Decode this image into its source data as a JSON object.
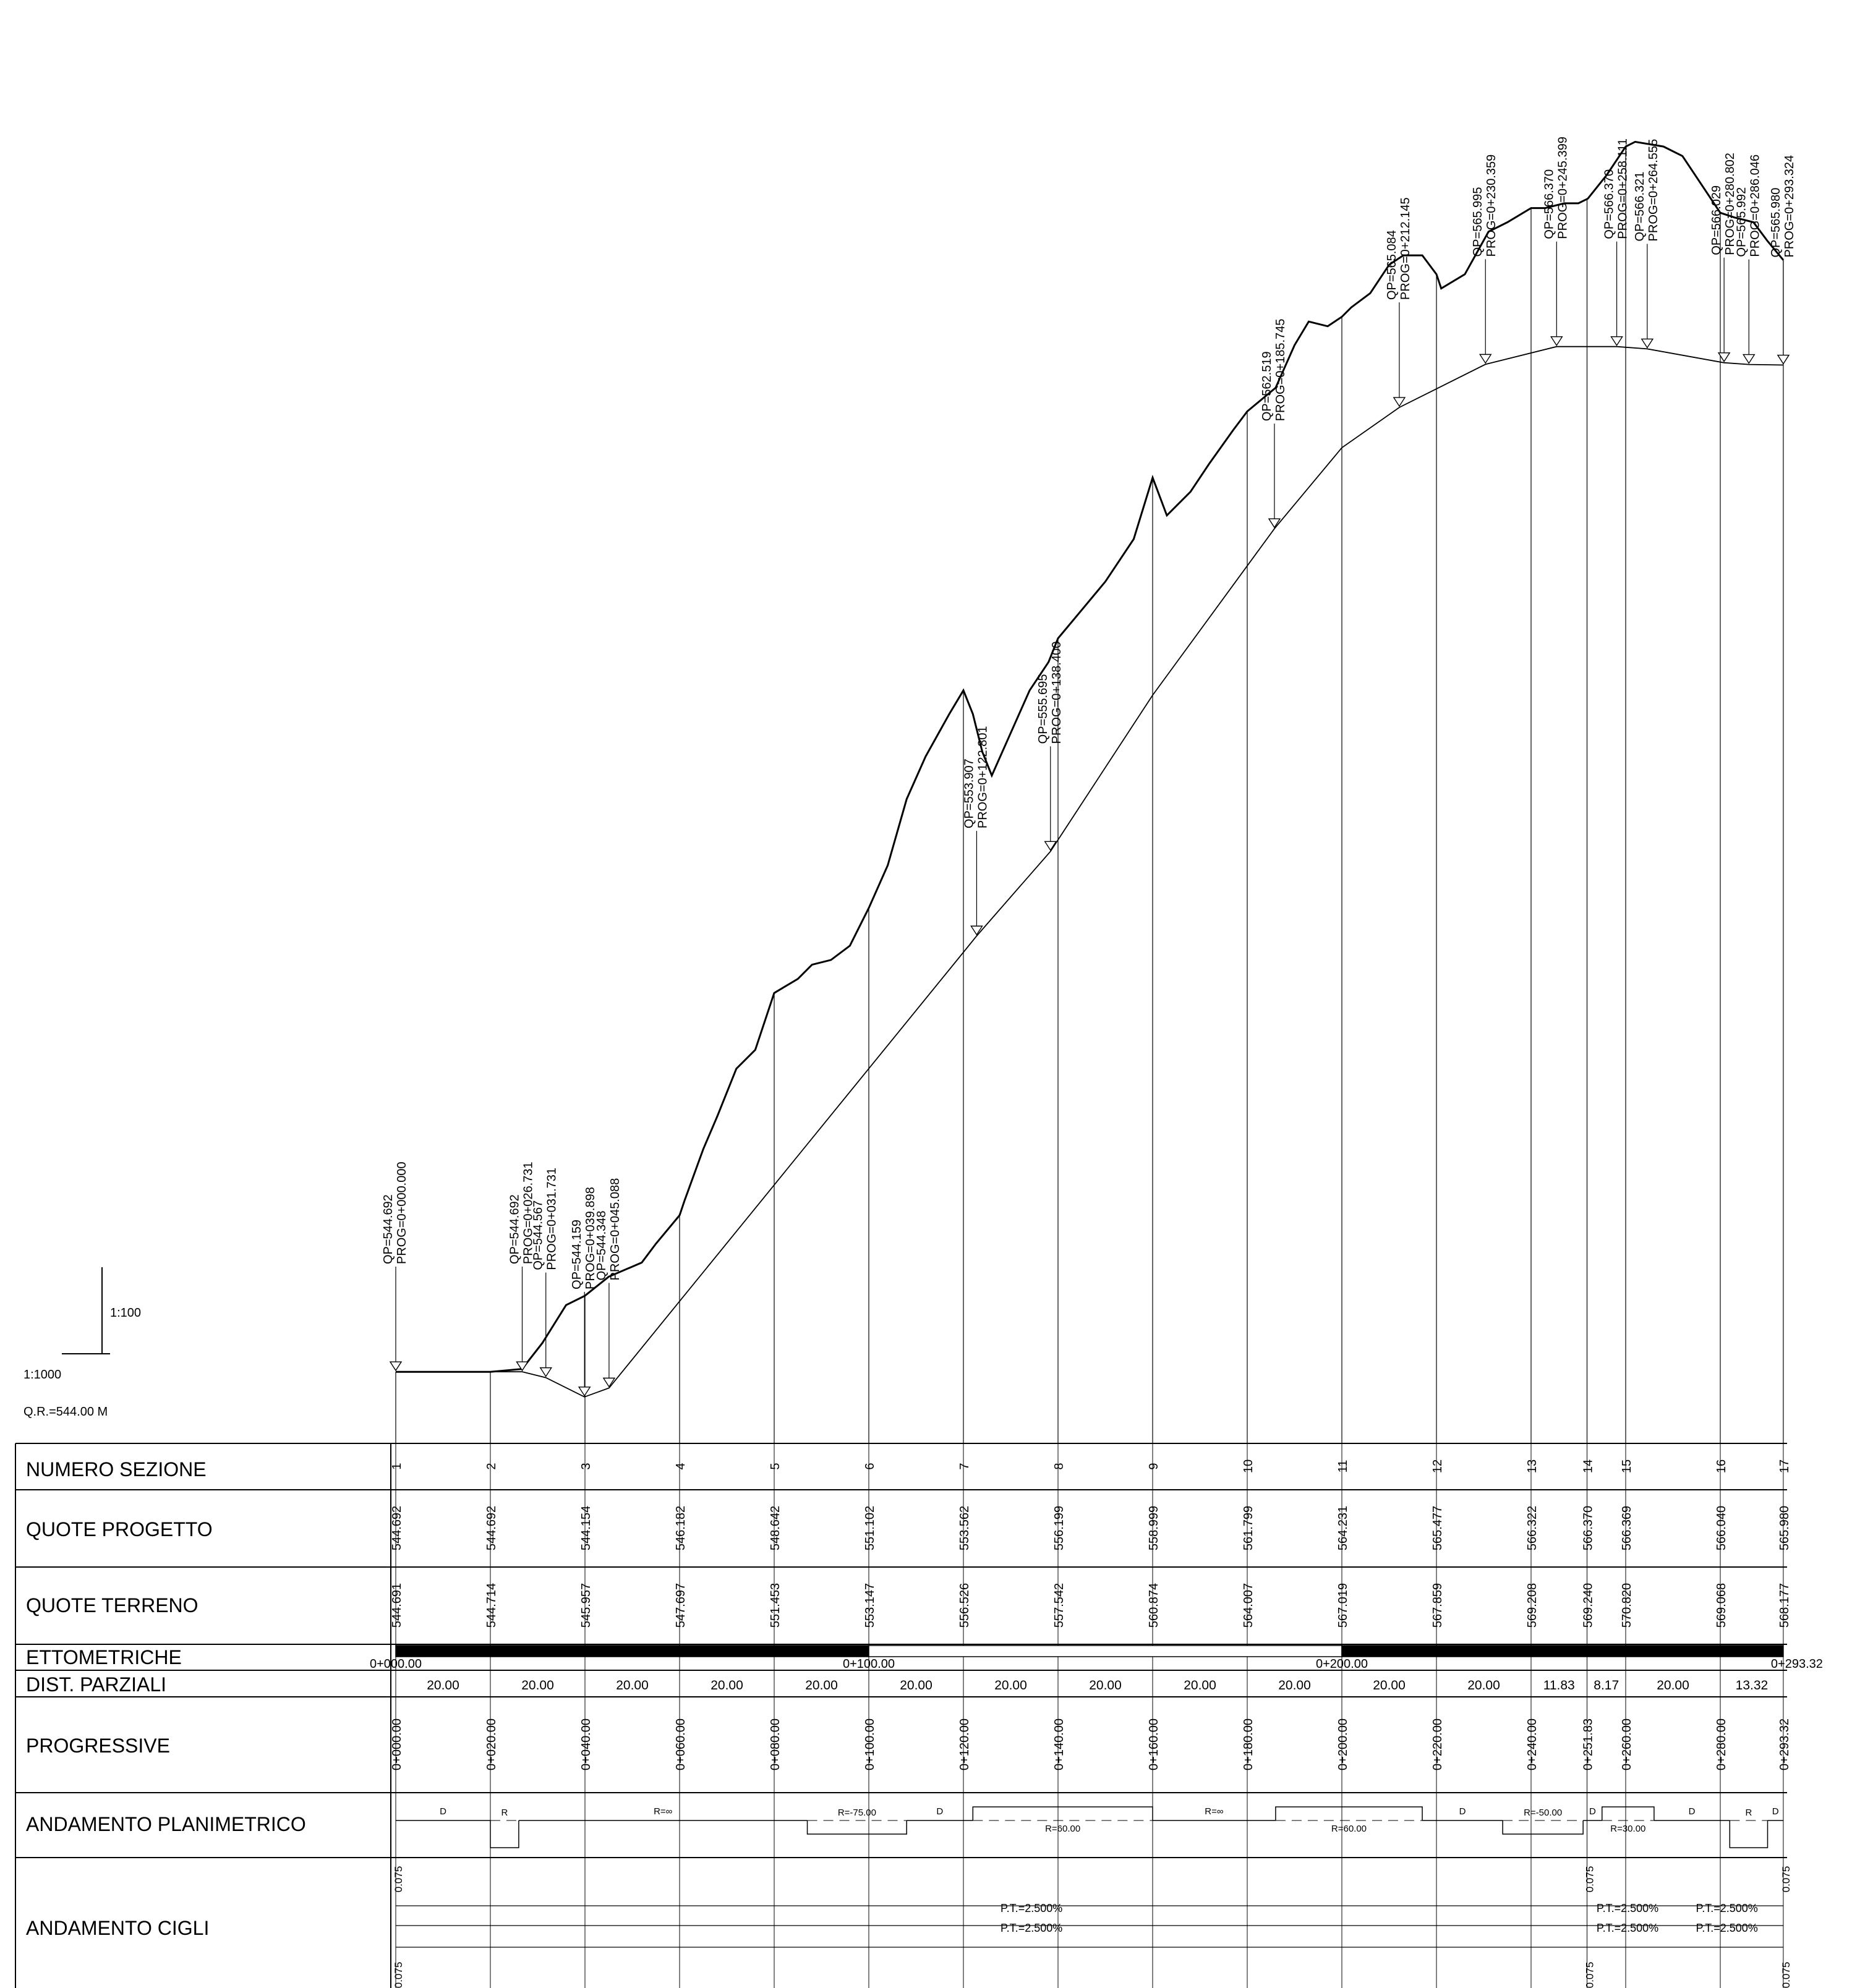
{
  "scales": {
    "vertical_scale": "1:100",
    "horizontal_scale": "1:1000",
    "reference_level": "Q.R.=544.00 M"
  },
  "row_titles": {
    "numero_sezione": "NUMERO SEZIONE",
    "quote_progetto": "QUOTE PROGETTO",
    "quote_terreno": "QUOTE TERRENO",
    "ettometriche": "ETTOMETRICHE",
    "dist_parziali": "DIST. PARZIALI",
    "progressive": "PROGRESSIVE",
    "andamento_planimetrico": "ANDAMENTO PLANIMETRICO",
    "andamento_cigli": "ANDAMENTO CIGLI"
  },
  "sections": [
    {
      "num": "1",
      "prog": "0+000.00",
      "chainage": 0,
      "quota_progetto": "544.692",
      "quota_terreno": "544.691"
    },
    {
      "num": "2",
      "prog": "0+020.00",
      "chainage": 20,
      "quota_progetto": "544.692",
      "quota_terreno": "544.714"
    },
    {
      "num": "3",
      "prog": "0+040.00",
      "chainage": 40,
      "quota_progetto": "544.154",
      "quota_terreno": "545.957"
    },
    {
      "num": "4",
      "prog": "0+060.00",
      "chainage": 60,
      "quota_progetto": "546.182",
      "quota_terreno": "547.697"
    },
    {
      "num": "5",
      "prog": "0+080.00",
      "chainage": 80,
      "quota_progetto": "548.642",
      "quota_terreno": "551.453"
    },
    {
      "num": "6",
      "prog": "0+100.00",
      "chainage": 100,
      "quota_progetto": "551.102",
      "quota_terreno": "553.147"
    },
    {
      "num": "7",
      "prog": "0+120.00",
      "chainage": 120,
      "quota_progetto": "553.562",
      "quota_terreno": "556.526"
    },
    {
      "num": "8",
      "prog": "0+140.00",
      "chainage": 140,
      "quota_progetto": "556.199",
      "quota_terreno": "557.542"
    },
    {
      "num": "9",
      "prog": "0+160.00",
      "chainage": 160,
      "quota_progetto": "558.999",
      "quota_terreno": "560.874"
    },
    {
      "num": "10",
      "prog": "0+180.00",
      "chainage": 180,
      "quota_progetto": "561.799",
      "quota_terreno": "564.007"
    },
    {
      "num": "11",
      "prog": "0+200.00",
      "chainage": 200,
      "quota_progetto": "564.231",
      "quota_terreno": "567.019"
    },
    {
      "num": "12",
      "prog": "0+220.00",
      "chainage": 220,
      "quota_progetto": "565.477",
      "quota_terreno": "567.859"
    },
    {
      "num": "13",
      "prog": "0+240.00",
      "chainage": 240,
      "quota_progetto": "566.322",
      "quota_terreno": "569.208"
    },
    {
      "num": "14",
      "prog": "0+251.83",
      "chainage": 251.83,
      "quota_progetto": "566.370",
      "quota_terreno": "569.240"
    },
    {
      "num": "15",
      "prog": "0+260.00",
      "chainage": 260,
      "quota_progetto": "566.369",
      "quota_terreno": "570.820"
    },
    {
      "num": "16",
      "prog": "0+280.00",
      "chainage": 280,
      "quota_progetto": "566.040",
      "quota_terreno": "569.068"
    },
    {
      "num": "17",
      "prog": "0+293.32",
      "chainage": 293.32,
      "quota_progetto": "565.980",
      "quota_terreno": "568.177"
    }
  ],
  "dist_parziali": [
    "20.00",
    "20.00",
    "20.00",
    "20.00",
    "20.00",
    "20.00",
    "20.00",
    "20.00",
    "20.00",
    "20.00",
    "20.00",
    "20.00",
    "11.83",
    "8.17",
    "20.00",
    "13.32"
  ],
  "ettometriche": [
    "0+000.00",
    "0+100.00",
    "0+200.00",
    "0+293.32"
  ],
  "vertices": [
    {
      "qp": "QP=544.692",
      "prog": "PROG=0+000.000",
      "chainage": 0
    },
    {
      "qp": "QP=544.692",
      "prog": "PROG=0+026.731",
      "chainage": 26.731
    },
    {
      "qp": "QP=544.567",
      "prog": "PROG=0+031.731",
      "chainage": 31.731
    },
    {
      "qp": "QP=544.159",
      "prog": "PROG=0+039.898",
      "chainage": 39.898
    },
    {
      "qp": "QP=544.348",
      "prog": "PROG=0+045.088",
      "chainage": 45.088
    },
    {
      "qp": "QP=553.907",
      "prog": "PROG=0+122.801",
      "chainage": 122.801
    },
    {
      "qp": "QP=555.695",
      "prog": "PROG=0+138.400",
      "chainage": 138.4
    },
    {
      "qp": "QP=562.519",
      "prog": "PROG=0+185.745",
      "chainage": 185.745
    },
    {
      "qp": "QP=565.084",
      "prog": "PROG=0+212.145",
      "chainage": 212.145
    },
    {
      "qp": "QP=565.995",
      "prog": "PROG=0+230.359",
      "chainage": 230.359
    },
    {
      "qp": "QP=566.370",
      "prog": "PROG=0+245.399",
      "chainage": 245.399
    },
    {
      "qp": "QP=566.370",
      "prog": "PROG=0+258.111",
      "chainage": 258.111
    },
    {
      "qp": "QP=566.321",
      "prog": "PROG=0+264.555",
      "chainage": 264.555
    },
    {
      "qp": "QP=566.029",
      "prog": "PROG=0+280.802",
      "chainage": 280.802
    },
    {
      "qp": "QP=565.992",
      "prog": "PROG=0+286.046",
      "chainage": 286.046
    },
    {
      "qp": "QP=565.980",
      "prog": "PROG=0+293.324",
      "chainage": 293.324
    }
  ],
  "planimetrico": [
    {
      "type": "D",
      "from": 0,
      "to": 20,
      "label": "D"
    },
    {
      "type": "R",
      "from": 20,
      "to": 26,
      "label": "R",
      "dir": "down"
    },
    {
      "type": "D",
      "from": 26,
      "to": 87,
      "label": "R=∞"
    },
    {
      "type": "R",
      "from": 87,
      "to": 108,
      "label": "R=-75.00",
      "dir": "down"
    },
    {
      "type": "D",
      "from": 108,
      "to": 122,
      "label": "D"
    },
    {
      "type": "R",
      "from": 122,
      "to": 160,
      "label": "R=60.00",
      "dir": "up"
    },
    {
      "type": "D",
      "from": 160,
      "to": 186,
      "label": "R=∞"
    },
    {
      "type": "R",
      "from": 186,
      "to": 217,
      "label": "R=60.00",
      "dir": "up"
    },
    {
      "type": "D",
      "from": 217,
      "to": 234,
      "label": "D"
    },
    {
      "type": "R",
      "from": 234,
      "to": 251,
      "label": "R=-50.00",
      "dir": "down"
    },
    {
      "type": "D",
      "from": 251,
      "to": 255,
      "label": "D"
    },
    {
      "type": "R",
      "from": 255,
      "to": 266,
      "label": "R=30.00",
      "dir": "up"
    },
    {
      "type": "D",
      "from": 266,
      "to": 282,
      "label": "D"
    },
    {
      "type": "R",
      "from": 282,
      "to": 290,
      "label": "R",
      "dir": "down"
    },
    {
      "type": "D",
      "from": 290,
      "to": 293.32,
      "label": "D"
    }
  ],
  "cigli": {
    "pt_labels": [
      "P.T.=2.500%",
      "P.T.=2.500%",
      "P.T.=2.500%",
      "P.T.=2.500%",
      "P.T.=2.500%",
      "P.T.=2.500%"
    ],
    "edge_value": "0.075"
  },
  "ground_profile": {
    "chainage": [
      0,
      20,
      26.7,
      31,
      36,
      40,
      45,
      52,
      55,
      60,
      61,
      65,
      68,
      72,
      73,
      76,
      80,
      85,
      88,
      92,
      96,
      100,
      104,
      108,
      112,
      117,
      120,
      122,
      124,
      126,
      130,
      134,
      138,
      140,
      145,
      150,
      156,
      160,
      163,
      168,
      172,
      177,
      180,
      186,
      190,
      193,
      197,
      200,
      202,
      206,
      210,
      213,
      217,
      220,
      221,
      226,
      231,
      235,
      240,
      243,
      247,
      250,
      252,
      256,
      260,
      262,
      268,
      272,
      276,
      280,
      283,
      287,
      290,
      293.32
    ],
    "elevation": [
      544.69,
      544.69,
      544.75,
      545.3,
      546.1,
      546.3,
      546.7,
      547.0,
      547.4,
      548.0,
      548.3,
      549.4,
      550.1,
      551.1,
      551.2,
      551.5,
      552.7,
      553.0,
      553.3,
      553.4,
      553.7,
      554.5,
      555.4,
      556.8,
      557.7,
      558.6,
      559.1,
      558.6,
      557.8,
      557.3,
      558.2,
      559.1,
      559.7,
      560.2,
      560.8,
      561.4,
      562.3,
      563.6,
      562.8,
      563.3,
      563.9,
      564.6,
      565.0,
      565.5,
      566.4,
      566.9,
      566.8,
      567.0,
      567.2,
      567.5,
      568.1,
      568.3,
      568.3,
      567.9,
      567.6,
      567.9,
      568.8,
      569.0,
      569.3,
      569.3,
      569.4,
      569.4,
      569.5,
      570.0,
      570.6,
      570.7,
      570.6,
      570.4,
      569.8,
      569.2,
      569.1,
      569.0,
      568.6,
      568.2
    ]
  },
  "project_profile": {
    "chainage": [
      0,
      26.731,
      31.731,
      39.898,
      45.088,
      60,
      80,
      100,
      120,
      122.801,
      138.4,
      160,
      185.745,
      200,
      212.145,
      230.359,
      245.399,
      258.111,
      264.555,
      280.802,
      286.046,
      293.324
    ],
    "elevation": [
      544.692,
      544.692,
      544.567,
      544.159,
      544.348,
      546.182,
      548.642,
      551.102,
      553.562,
      553.907,
      555.695,
      558.999,
      562.519,
      564.231,
      565.084,
      565.995,
      566.37,
      566.37,
      566.321,
      566.029,
      565.992,
      565.98
    ]
  }
}
